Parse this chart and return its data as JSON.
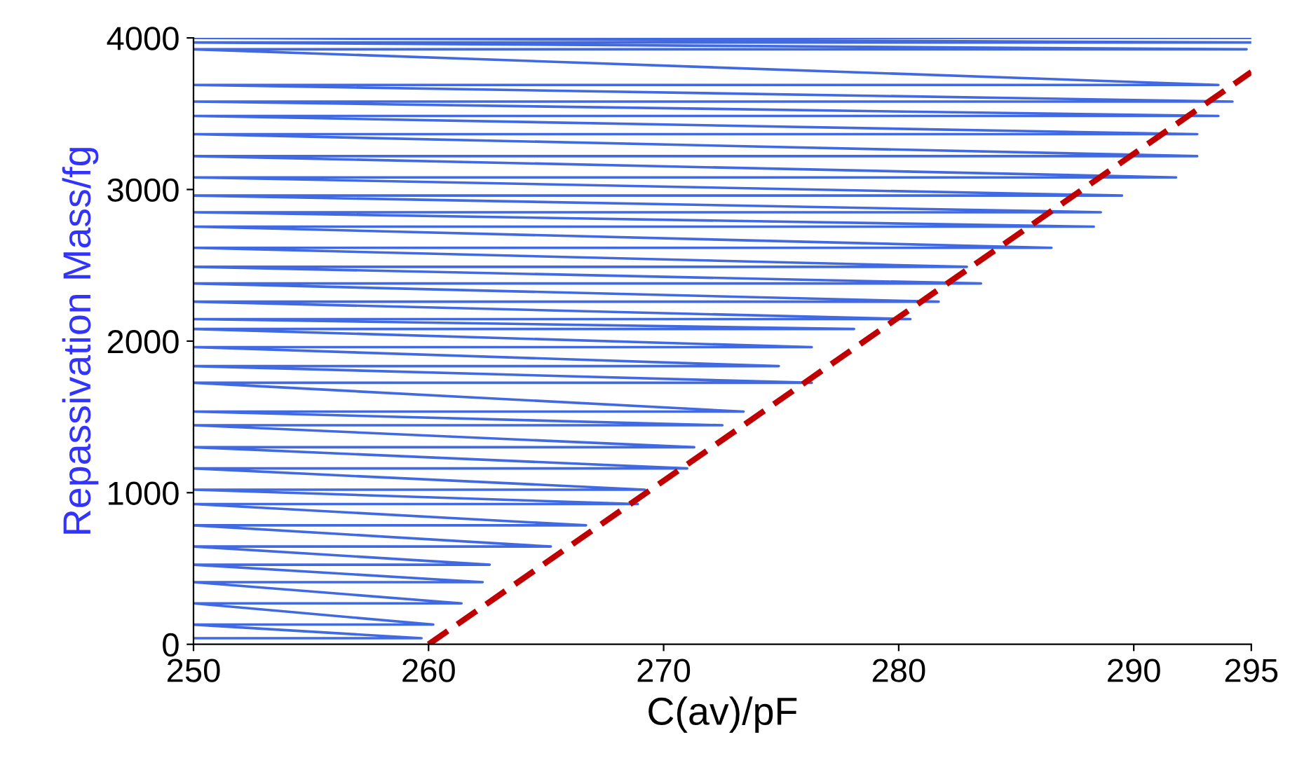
{
  "chart_data": {
    "type": "line",
    "xlabel": "C(av)/pF",
    "ylabel": "Repassivation Mass/fg",
    "xlim": [
      250,
      295
    ],
    "ylim": [
      0,
      4000
    ],
    "xticks": [
      250,
      260,
      270,
      280,
      290,
      295
    ],
    "yticks": [
      0,
      1000,
      2000,
      3000,
      4000
    ],
    "grid": false,
    "legend": false,
    "marker": "none",
    "series": [
      {
        "color": "#4169e1",
        "line_style": "solid",
        "x": [
          250,
          259.7,
          250,
          260.2,
          250,
          261.4,
          250,
          262.3,
          250,
          262.6,
          250,
          265.2,
          250,
          266.7,
          250,
          268.9,
          250,
          269.2,
          250,
          271.0,
          250,
          271.3,
          250,
          272.5,
          250,
          273.4,
          250,
          276.3,
          250,
          274.9,
          250,
          276.3,
          250,
          278.1,
          250,
          280.5,
          250,
          281.7,
          250,
          283.5,
          250,
          282.9,
          250,
          286.5,
          250,
          288.3,
          250,
          288.6,
          250,
          289.5,
          250,
          291.8,
          250,
          292.7,
          250,
          292.7,
          250,
          293.6,
          250,
          294.2,
          250,
          293.6,
          250,
          294.8,
          250,
          295,
          250,
          295
        ],
        "values": [
          40,
          40,
          130,
          130,
          270,
          270,
          410,
          410,
          525,
          525,
          645,
          645,
          785,
          785,
          925,
          925,
          1020,
          1020,
          1160,
          1160,
          1300,
          1300,
          1445,
          1445,
          1535,
          1535,
          1725,
          1725,
          1835,
          1835,
          1960,
          1960,
          2080,
          2080,
          2145,
          2145,
          2260,
          2260,
          2380,
          2380,
          2490,
          2490,
          2615,
          2615,
          2755,
          2755,
          2850,
          2850,
          2960,
          2960,
          3080,
          3080,
          3220,
          3220,
          3365,
          3365,
          3485,
          3485,
          3580,
          3580,
          3690,
          3690,
          3925,
          3925,
          3970,
          3970,
          4000,
          4000
        ]
      },
      {
        "color": "#c00000",
        "line_style": "dashed",
        "x": [
          260,
          295
        ],
        "values": [
          0,
          3775
        ]
      }
    ]
  }
}
